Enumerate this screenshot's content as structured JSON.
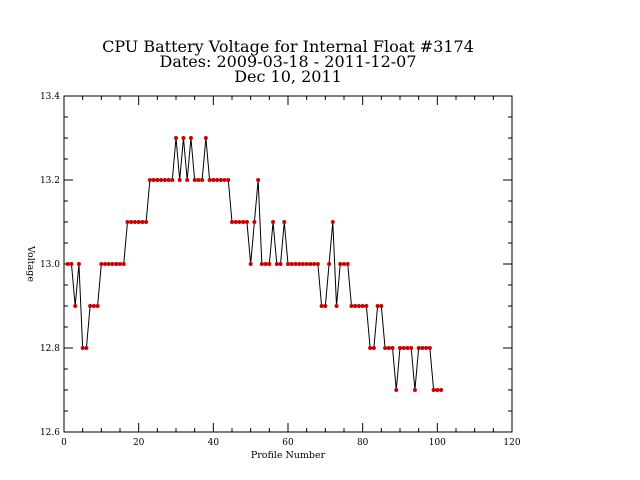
{
  "chart_data": {
    "type": "line",
    "title_lines": [
      "CPU Battery Voltage for Internal Float #3174",
      "Dates:  2009-03-18 -  2011-12-07",
      "Dec 10, 2011"
    ],
    "xlabel": "Profile Number",
    "ylabel": "Voltage",
    "xlim": [
      0,
      120
    ],
    "ylim": [
      12.6,
      13.4
    ],
    "x_ticks": [
      "0",
      "20",
      "40",
      "60",
      "80",
      "100",
      "120"
    ],
    "y_ticks": [
      "13.4",
      "13.2",
      "13.0",
      "12.8",
      "12.6"
    ],
    "grid": false,
    "legend": "none",
    "line_color": "#000000",
    "marker_color": "#cc0000",
    "x": [
      1,
      2,
      3,
      4,
      5,
      6,
      7,
      8,
      9,
      10,
      11,
      12,
      13,
      14,
      15,
      16,
      17,
      18,
      19,
      20,
      21,
      22,
      23,
      24,
      25,
      26,
      27,
      28,
      29,
      30,
      31,
      32,
      33,
      34,
      35,
      36,
      37,
      38,
      39,
      40,
      41,
      42,
      43,
      44,
      45,
      46,
      47,
      48,
      49,
      50,
      51,
      52,
      53,
      54,
      55,
      56,
      57,
      58,
      59,
      60,
      61,
      62,
      63,
      64,
      65,
      66,
      67,
      68,
      69,
      70,
      71,
      72,
      73,
      74,
      75,
      76,
      77,
      78,
      79,
      80,
      81,
      82,
      83,
      84,
      85,
      86,
      87,
      88,
      89,
      90,
      91,
      92,
      93,
      94,
      95,
      96,
      97,
      98,
      99,
      100,
      101
    ],
    "y": [
      13.0,
      13.0,
      12.9,
      13.0,
      12.8,
      12.8,
      12.9,
      12.9,
      12.9,
      13.0,
      13.0,
      13.0,
      13.0,
      13.0,
      13.0,
      13.0,
      13.1,
      13.1,
      13.1,
      13.1,
      13.1,
      13.1,
      13.2,
      13.2,
      13.2,
      13.2,
      13.2,
      13.2,
      13.2,
      13.3,
      13.2,
      13.3,
      13.2,
      13.3,
      13.2,
      13.2,
      13.2,
      13.3,
      13.2,
      13.2,
      13.2,
      13.2,
      13.2,
      13.2,
      13.1,
      13.1,
      13.1,
      13.1,
      13.1,
      13.0,
      13.1,
      13.2,
      13.0,
      13.0,
      13.0,
      13.1,
      13.0,
      13.0,
      13.1,
      13.0,
      13.0,
      13.0,
      13.0,
      13.0,
      13.0,
      13.0,
      13.0,
      13.0,
      12.9,
      12.9,
      13.0,
      13.1,
      12.9,
      13.0,
      13.0,
      13.0,
      12.9,
      12.9,
      12.9,
      12.9,
      12.9,
      12.8,
      12.8,
      12.9,
      12.9,
      12.8,
      12.8,
      12.8,
      12.7,
      12.8,
      12.8,
      12.8,
      12.8,
      12.7,
      12.8,
      12.8,
      12.8,
      12.8,
      12.7,
      12.7,
      12.7
    ]
  }
}
